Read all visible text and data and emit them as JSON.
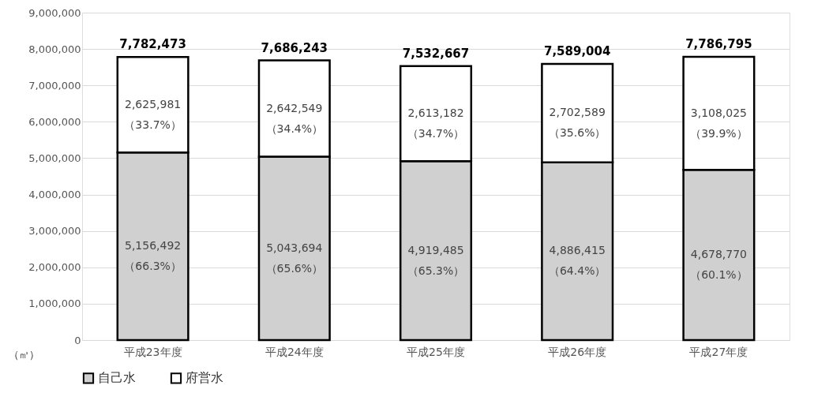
{
  "chart_data": {
    "type": "bar",
    "stacked": true,
    "ylabel": "（㎥）",
    "categories": [
      "平成23年度",
      "平成24年度",
      "平成25年度",
      "平成26年度",
      "平成27年度"
    ],
    "series": [
      {
        "name": "自己水",
        "color": "#d0d0d0",
        "values": [
          5156492,
          5043694,
          4919485,
          4886415,
          4678770
        ],
        "value_labels": [
          "5,156,492\n（66.3%）",
          "5,043,694\n（65.6%）",
          "4,919,485\n（65.3%）",
          "4,886,415\n（64.4%）",
          "4,678,770\n（60.1%）"
        ]
      },
      {
        "name": "府営水",
        "color": "#ffffff",
        "values": [
          2625981,
          2642549,
          2613182,
          2702589,
          3108025
        ],
        "value_labels": [
          "2,625,981\n（33.7%）",
          "2,642,549\n（34.4%）",
          "2,613,182\n（34.7%）",
          "2,702,589\n（35.6%）",
          "3,108,025\n（39.9%）"
        ]
      }
    ],
    "totals": [
      "7,782,473",
      "7,686,243",
      "7,532,667",
      "7,589,004",
      "7,786,795"
    ],
    "ylim": [
      0,
      9000000
    ],
    "yticks": [
      0,
      {
        "value": 1000000,
        "label": "1,000,000"
      },
      {
        "value": 2000000,
        "label": "2,000,000"
      },
      {
        "value": 3000000,
        "label": "3,000,000"
      },
      {
        "value": 4000000,
        "label": "4,000,000"
      },
      {
        "value": 5000000,
        "label": "5,000,000"
      },
      {
        "value": 6000000,
        "label": "6,000,000"
      },
      {
        "value": 7000000,
        "label": "7,000,000"
      },
      {
        "value": 8000000,
        "label": "8,000,000"
      },
      {
        "value": 9000000,
        "label": "9,000,000"
      }
    ],
    "grid": "y",
    "legend": "bottom"
  }
}
